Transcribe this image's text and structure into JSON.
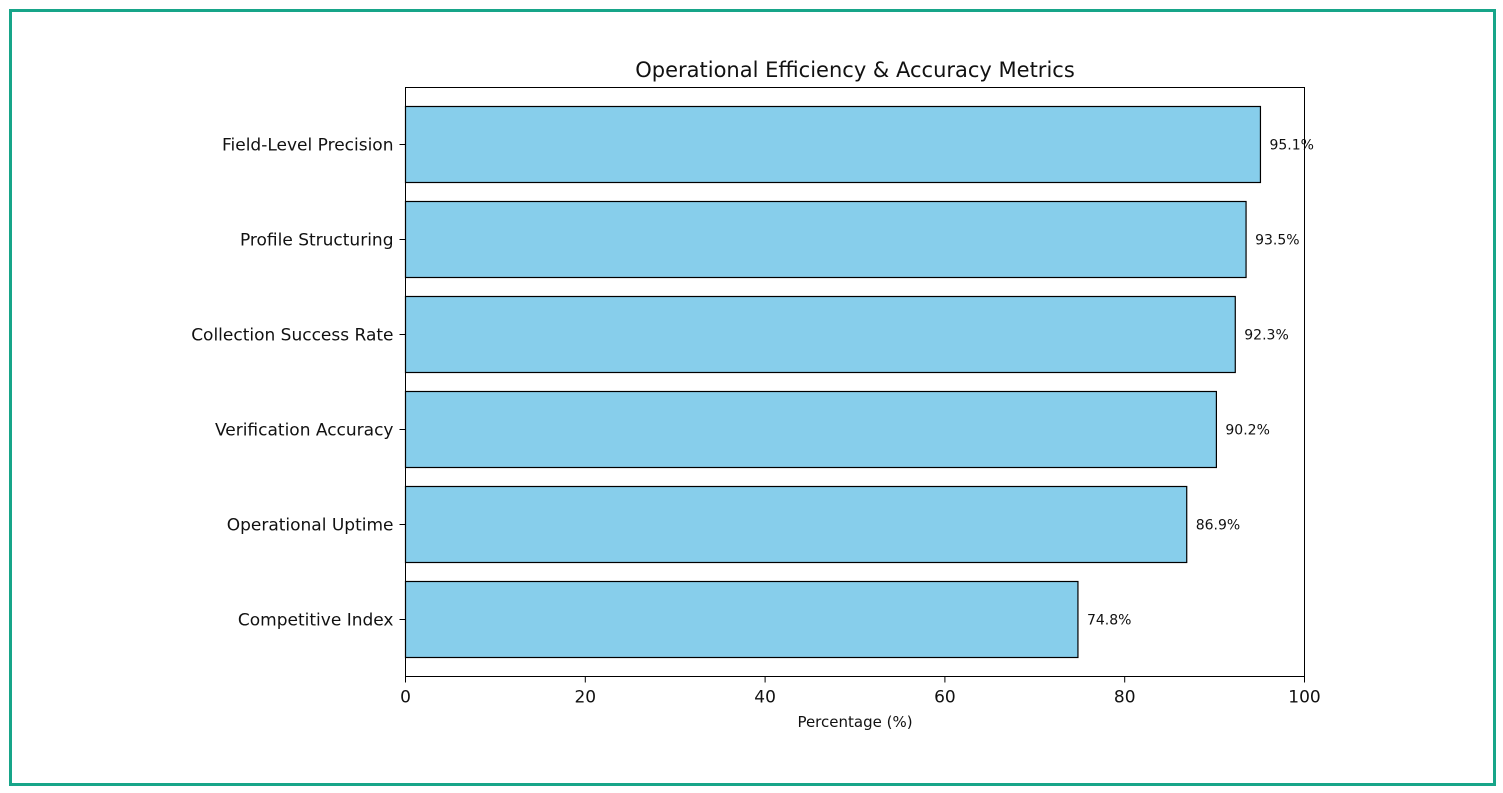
{
  "colors": {
    "frame_border": "#17a589",
    "bar_fill": "#87ceeb",
    "bar_edge": "#000000"
  },
  "chart_data": {
    "type": "bar",
    "orientation": "horizontal",
    "title": "Operational Efficiency & Accuracy Metrics",
    "xlabel": "Percentage (%)",
    "ylabel": "",
    "xlim": [
      0,
      100
    ],
    "xticks": [
      0,
      20,
      40,
      60,
      80,
      100
    ],
    "grid": false,
    "categories": [
      "Field-Level Precision",
      "Profile Structuring",
      "Collection Success Rate",
      "Verification Accuracy",
      "Operational Uptime",
      "Competitive Index"
    ],
    "values": [
      95.1,
      93.5,
      92.3,
      90.2,
      86.9,
      74.8
    ],
    "value_labels": [
      "95.1%",
      "93.5%",
      "92.3%",
      "90.2%",
      "86.9%",
      "74.8%"
    ]
  }
}
